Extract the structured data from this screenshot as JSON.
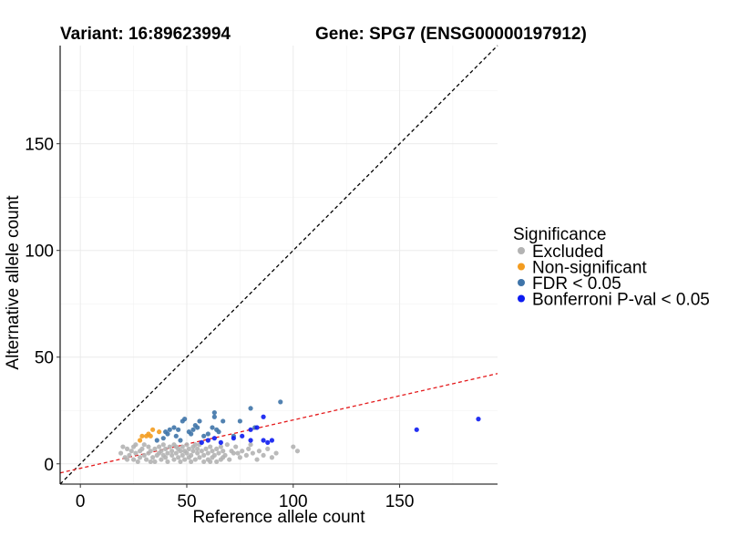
{
  "chart_data": {
    "type": "scatter",
    "title_left": "Variant: 16:89623994",
    "title_right": "Gene: SPG7 (ENSG00000197912)",
    "xlabel": "Reference allele count",
    "ylabel": "Alternative allele count",
    "xlim": [
      -9.5,
      196
    ],
    "ylim": [
      -9.5,
      196
    ],
    "xticks": [
      0,
      50,
      100,
      150
    ],
    "yticks": [
      0,
      50,
      100,
      150
    ],
    "grid": true,
    "legend": {
      "title": "Significance",
      "position": "right",
      "entries": [
        {
          "key": "excluded",
          "label": "Excluded",
          "color": "#B3B3B3"
        },
        {
          "key": "nonsig",
          "label": "Non-significant",
          "color": "#F39C1F"
        },
        {
          "key": "fdr",
          "label": "FDR < 0.05",
          "color": "#3F74A9"
        },
        {
          "key": "bonf",
          "label": "Bonferroni P-val < 0.05",
          "color": "#0C1BF1"
        }
      ]
    },
    "reference_lines": [
      {
        "name": "identity",
        "slope": 1,
        "intercept": 0,
        "color": "#000000",
        "dash": "dashed"
      },
      {
        "name": "fit",
        "slope": 0.2265,
        "intercept": -2.1,
        "color": "#E41A1C",
        "dash": "dashed"
      }
    ],
    "series": [
      {
        "name": "Excluded",
        "key": "excluded",
        "points": [
          [
            19,
            5
          ],
          [
            20,
            8
          ],
          [
            21,
            3
          ],
          [
            22,
            7
          ],
          [
            23,
            4
          ],
          [
            24,
            6
          ],
          [
            25,
            2
          ],
          [
            25,
            8
          ],
          [
            26,
            5
          ],
          [
            27,
            1
          ],
          [
            28,
            6
          ],
          [
            28,
            3
          ],
          [
            29,
            7
          ],
          [
            30,
            4
          ],
          [
            30,
            9
          ],
          [
            31,
            2
          ],
          [
            32,
            5
          ],
          [
            32,
            8
          ],
          [
            33,
            6
          ],
          [
            34,
            3
          ],
          [
            35,
            7
          ],
          [
            35,
            1
          ],
          [
            36,
            4
          ],
          [
            37,
            8
          ],
          [
            37,
            5
          ],
          [
            38,
            2
          ],
          [
            38,
            6
          ],
          [
            39,
            9
          ],
          [
            40,
            3
          ],
          [
            40,
            7
          ],
          [
            41,
            5
          ],
          [
            41,
            1
          ],
          [
            42,
            8
          ],
          [
            43,
            4
          ],
          [
            43,
            6
          ],
          [
            44,
            2
          ],
          [
            44,
            9
          ],
          [
            45,
            5
          ],
          [
            46,
            3
          ],
          [
            46,
            7
          ],
          [
            47,
            6
          ],
          [
            47,
            1
          ],
          [
            48,
            4
          ],
          [
            48,
            8
          ],
          [
            49,
            2
          ],
          [
            49,
            6
          ],
          [
            50,
            5
          ],
          [
            50,
            9
          ],
          [
            51,
            3
          ],
          [
            51,
            7
          ],
          [
            52,
            4
          ],
          [
            52,
            1
          ],
          [
            53,
            6
          ],
          [
            53,
            8
          ],
          [
            54,
            2
          ],
          [
            55,
            5
          ],
          [
            55,
            7
          ],
          [
            56,
            3
          ],
          [
            56,
            9
          ],
          [
            57,
            6
          ],
          [
            58,
            4
          ],
          [
            58,
            1
          ],
          [
            59,
            7
          ],
          [
            60,
            5
          ],
          [
            60,
            2
          ],
          [
            61,
            8
          ],
          [
            62,
            3
          ],
          [
            62,
            6
          ],
          [
            63,
            4
          ],
          [
            64,
            7
          ],
          [
            64,
            1
          ],
          [
            65,
            5
          ],
          [
            66,
            8
          ],
          [
            67,
            3
          ],
          [
            67,
            6
          ],
          [
            68,
            4
          ],
          [
            70,
            2
          ],
          [
            71,
            6
          ],
          [
            72,
            5
          ],
          [
            73,
            8
          ],
          [
            75,
            3
          ],
          [
            76,
            6
          ],
          [
            78,
            4
          ],
          [
            79,
            7
          ],
          [
            81,
            5
          ],
          [
            83,
            2
          ],
          [
            84,
            6
          ],
          [
            86,
            4
          ],
          [
            88,
            7
          ],
          [
            90,
            3
          ],
          [
            92,
            5
          ],
          [
            100,
            8
          ],
          [
            102,
            6
          ],
          [
            22,
            2
          ],
          [
            26,
            9
          ],
          [
            33,
            1
          ],
          [
            39,
            4
          ],
          [
            45,
            8
          ],
          [
            54,
            9
          ],
          [
            61,
            1
          ],
          [
            66,
            2
          ],
          [
            69,
            9
          ],
          [
            74,
            5
          ],
          [
            80,
            9
          ]
        ]
      },
      {
        "name": "Non-significant",
        "key": "nonsig",
        "points": [
          [
            28,
            11
          ],
          [
            29,
            13
          ],
          [
            31,
            13
          ],
          [
            33,
            13
          ],
          [
            34,
            16
          ],
          [
            37,
            15
          ],
          [
            32,
            14
          ]
        ]
      },
      {
        "name": "FDR < 0.05",
        "key": "fdr",
        "points": [
          [
            36,
            11
          ],
          [
            39,
            12
          ],
          [
            41,
            14
          ],
          [
            42,
            16
          ],
          [
            44,
            17
          ],
          [
            45,
            13
          ],
          [
            46,
            16
          ],
          [
            47,
            11
          ],
          [
            48,
            20
          ],
          [
            49,
            21
          ],
          [
            51,
            15
          ],
          [
            53,
            16
          ],
          [
            54,
            18
          ],
          [
            55,
            17
          ],
          [
            56,
            20
          ],
          [
            58,
            13
          ],
          [
            60,
            14
          ],
          [
            62,
            17
          ],
          [
            63,
            22
          ],
          [
            63,
            24
          ],
          [
            64,
            16
          ],
          [
            65,
            15
          ],
          [
            67,
            20
          ],
          [
            72,
            13
          ],
          [
            75,
            20
          ],
          [
            80,
            26
          ],
          [
            82,
            17
          ],
          [
            94,
            29
          ],
          [
            40,
            15
          ],
          [
            52,
            14
          ]
        ]
      },
      {
        "name": "Bonferroni P-val < 0.05",
        "key": "bonf",
        "points": [
          [
            57,
            10
          ],
          [
            60,
            11
          ],
          [
            63,
            12
          ],
          [
            66,
            10
          ],
          [
            72,
            12
          ],
          [
            76,
            13
          ],
          [
            80,
            11
          ],
          [
            80,
            16
          ],
          [
            83,
            17
          ],
          [
            86,
            11
          ],
          [
            86,
            22
          ],
          [
            88,
            10
          ],
          [
            90,
            11
          ],
          [
            158,
            16
          ],
          [
            187,
            21
          ]
        ]
      }
    ]
  }
}
